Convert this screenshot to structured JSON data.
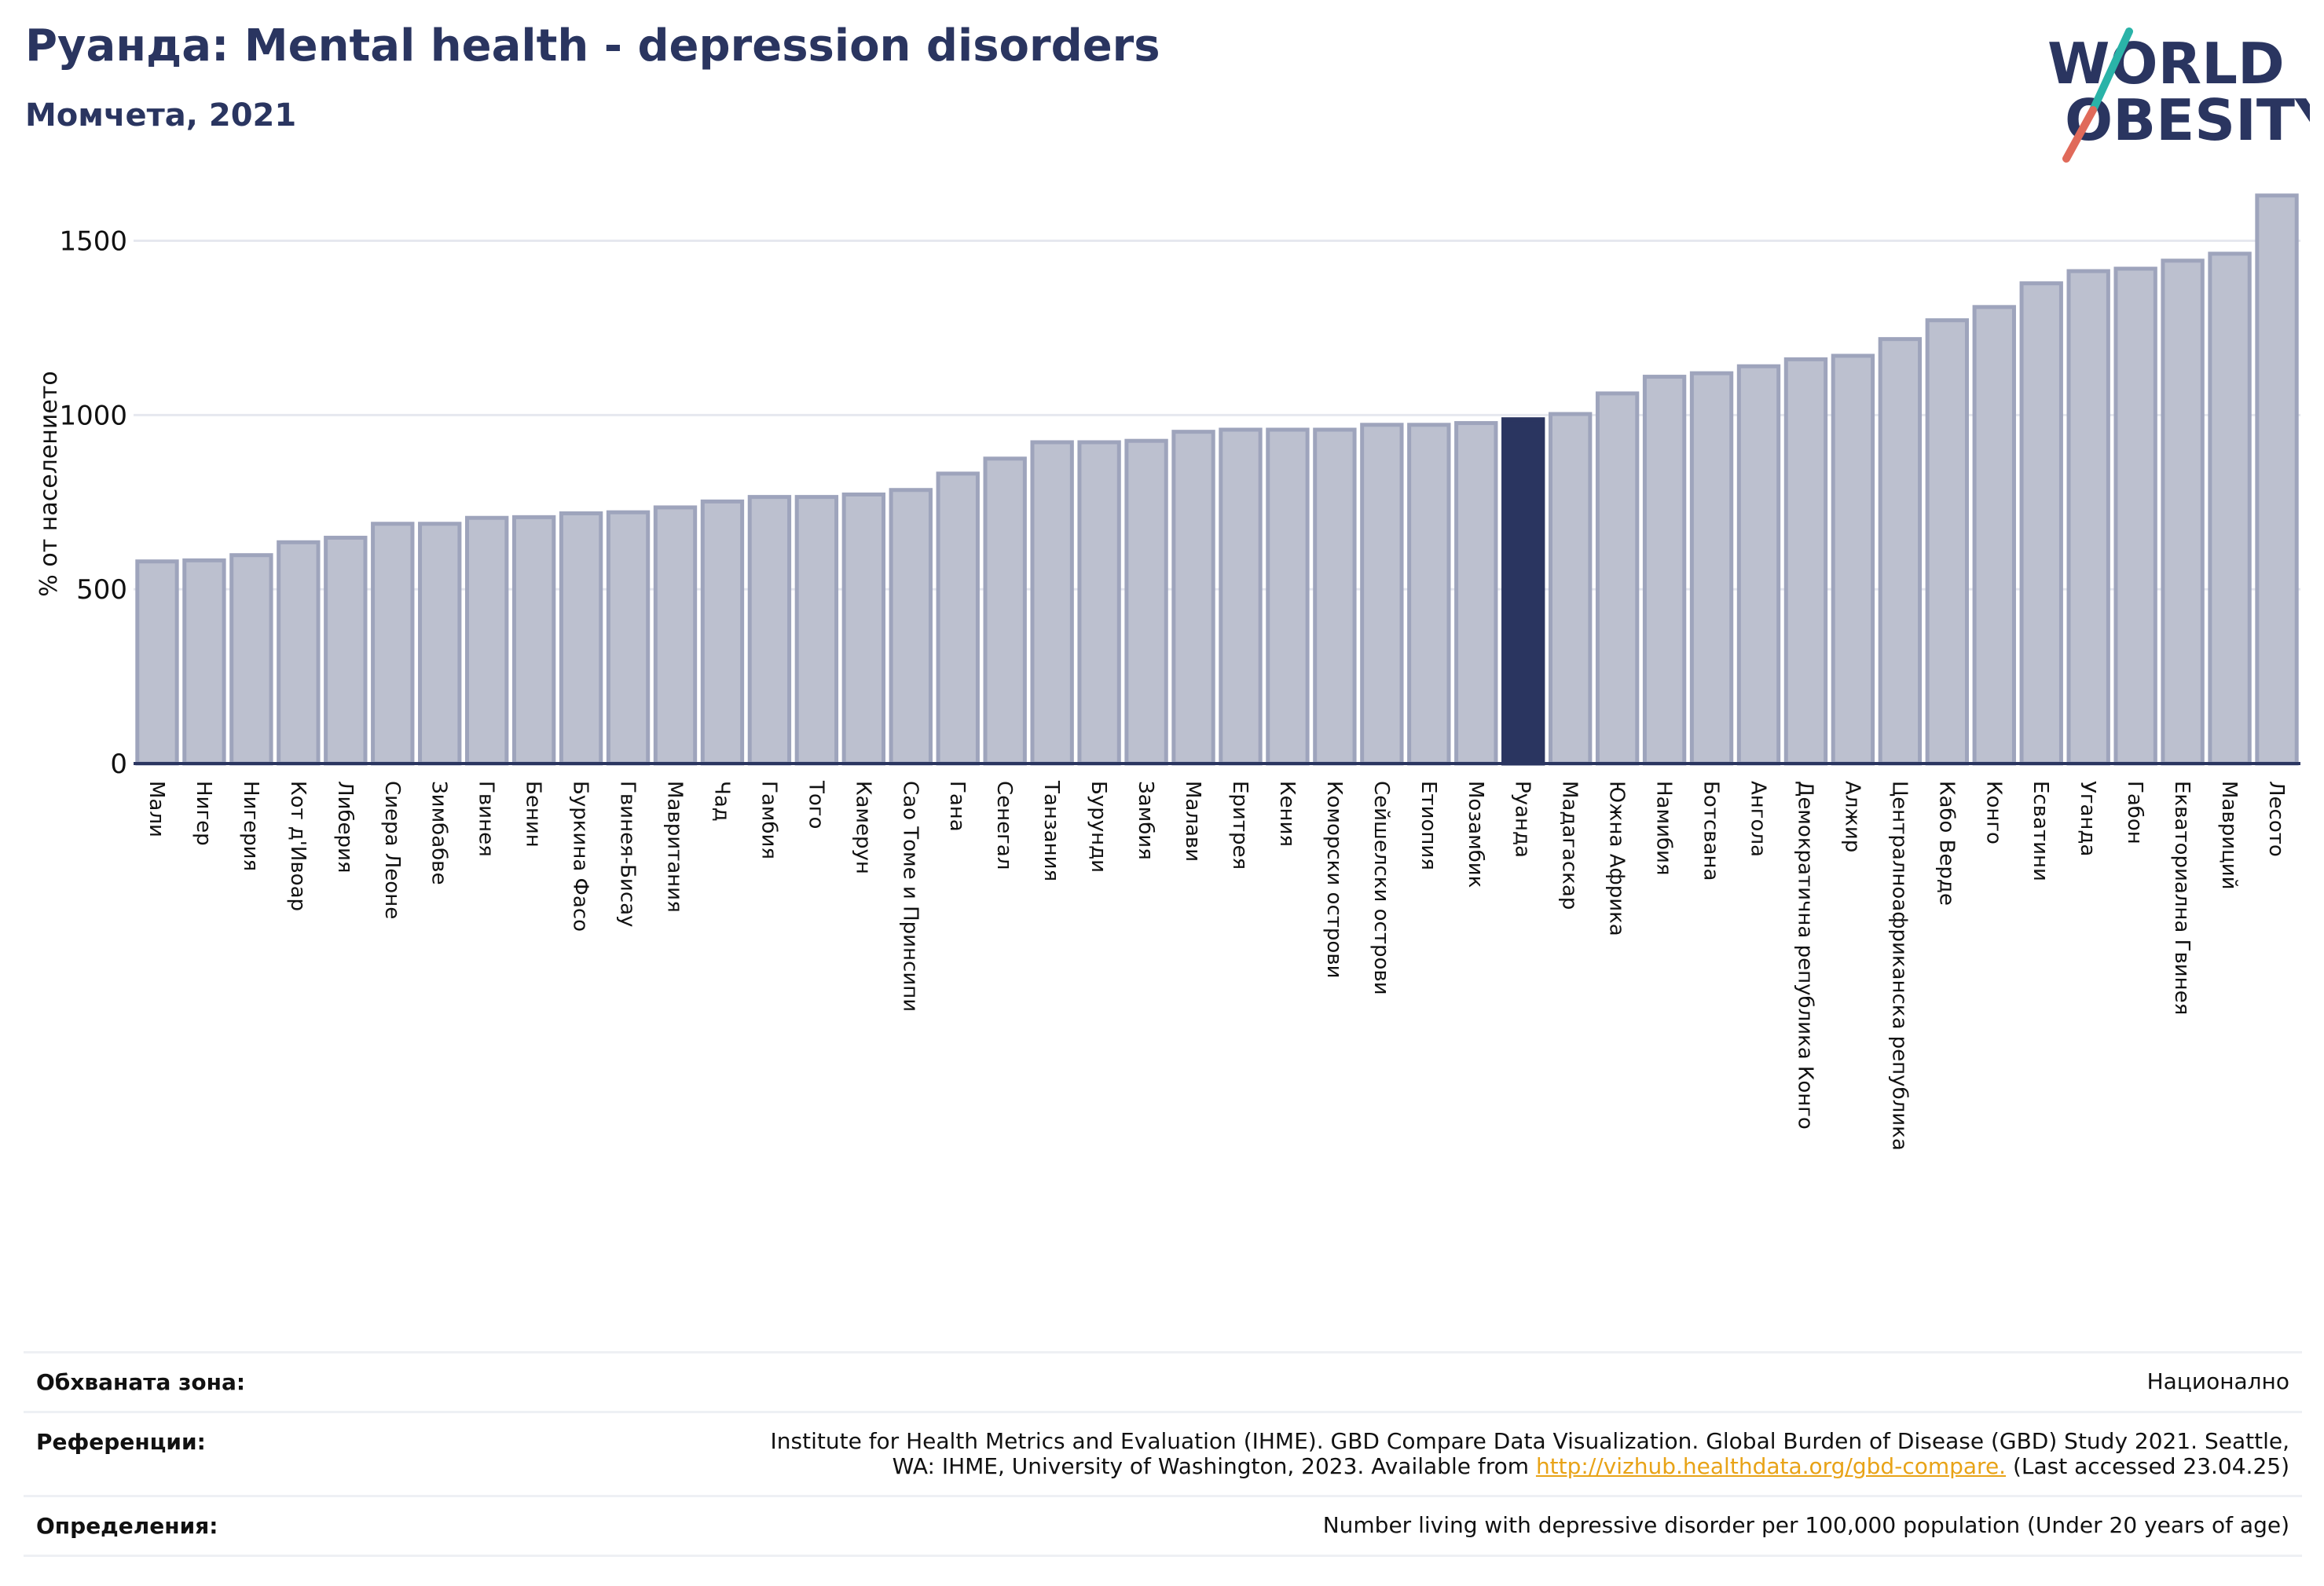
{
  "title": "Руанда: Mental health - depression disorders",
  "subtitle": "Момчета, 2021",
  "logo": {
    "line1": "WORLD",
    "line2": "OBESITY"
  },
  "colors": {
    "bar": "#bcc0cf",
    "bar_border": "#9ea4bc",
    "highlight": "#2a3560",
    "grid": "#e6e8ef",
    "axis": "#2a3560"
  },
  "chart_data": {
    "type": "bar",
    "ylabel": "% от населението",
    "ylim": [
      0,
      1650
    ],
    "yticks": [
      0,
      500,
      1000,
      1500
    ],
    "highlight": "Руанда",
    "categories": [
      "Мали",
      "Нигер",
      "Нигерия",
      "Кот д'Ивоар",
      "Либерия",
      "Сиера Леоне",
      "Зимбабве",
      "Гвинея",
      "Бенин",
      "Буркина Фасо",
      "Гвинея-Бисау",
      "Мавритания",
      "Чад",
      "Гамбия",
      "Того",
      "Камерун",
      "Сао Томе и Принсипи",
      "Гана",
      "Сенегал",
      "Танзания",
      "Бурунди",
      "Замбия",
      "Малави",
      "Еритрея",
      "Кения",
      "Коморски острови",
      "Сейшелски острови",
      "Етиопия",
      "Мозамбик",
      "Руанда",
      "Мадагаскар",
      "Южна Африка",
      "Намибия",
      "Ботсвана",
      "Ангола",
      "Демократична република Конго",
      "Алжир",
      "Централноафриканска република",
      "Кабо Верде",
      "Конго",
      "Есватини",
      "Уганда",
      "Габон",
      "Екваториална Гвинея",
      "Мавриций",
      "Лесото"
    ],
    "values": [
      580,
      583,
      598,
      635,
      648,
      688,
      688,
      705,
      707,
      718,
      721,
      735,
      752,
      765,
      765,
      772,
      785,
      832,
      875,
      922,
      922,
      926,
      952,
      958,
      958,
      958,
      972,
      972,
      977,
      988,
      1003,
      1062,
      1110,
      1120,
      1140,
      1160,
      1170,
      1218,
      1272,
      1310,
      1378,
      1413,
      1420,
      1443,
      1463,
      1630
    ]
  },
  "meta": {
    "area_label": "Обхваната зона:",
    "area_value": "Национално",
    "ref_label": "Референции:",
    "ref_text1": "Institute for Health Metrics and Evaluation (IHME). GBD Compare Data Visualization. Global Burden of Disease (GBD) Study 2021. Seattle,",
    "ref_text2": "WA: IHME, University of Washington, 2023. Available from",
    "ref_link": "http://vizhub.healthdata.org/gbd-compare.",
    "ref_text3": "(Last accessed 23.04.25)",
    "def_label": "Определения:",
    "def_value": "Number living with depressive disorder per 100,000 population (Under 20 years of age)"
  }
}
